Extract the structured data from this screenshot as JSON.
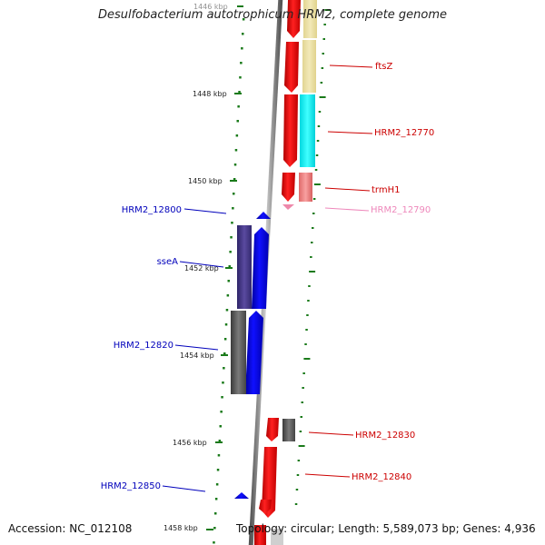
{
  "title": "Desulfobacterium autotrophicum HRM2, complete genome",
  "accession_text": "Accession: NC_012108",
  "topology_text": "Topology: circular; Length: 5,589,073 bp; Genes: 4,936",
  "ruler": {
    "labels": [
      "1446 kbp",
      "1448 kbp",
      "1450 kbp",
      "1452 kbp",
      "1454 kbp",
      "1456 kbp",
      "1458 kbp"
    ],
    "color": "#1a7a1a"
  },
  "colors": {
    "backbone": "#8a8a8a",
    "red": "#ff0000",
    "blue": "#0000ff",
    "pink": "#ee88aa",
    "khaki": "#e8dc9a",
    "cyan": "#00eeee",
    "salmon": "#f08080",
    "indigo": "#4a3a8a",
    "gray": "#6a6a6a"
  },
  "genes": [
    {
      "label": "ftsZ",
      "color": "#cc0000",
      "strand": "forward"
    },
    {
      "label": "HRM2_12770",
      "color": "#cc0000",
      "strand": "forward"
    },
    {
      "label": "trmH1",
      "color": "#cc0000",
      "strand": "forward"
    },
    {
      "label": "HRM2_12790",
      "color": "#ee88bb",
      "strand": "forward"
    },
    {
      "label": "HRM2_12800",
      "color": "#0000bb",
      "strand": "reverse"
    },
    {
      "label": "sseA",
      "color": "#0000bb",
      "strand": "reverse"
    },
    {
      "label": "HRM2_12820",
      "color": "#0000bb",
      "strand": "reverse"
    },
    {
      "label": "HRM2_12830",
      "color": "#cc0000",
      "strand": "forward"
    },
    {
      "label": "HRM2_12840",
      "color": "#cc0000",
      "strand": "forward"
    },
    {
      "label": "HRM2_12850",
      "color": "#0000bb",
      "strand": "reverse"
    }
  ]
}
